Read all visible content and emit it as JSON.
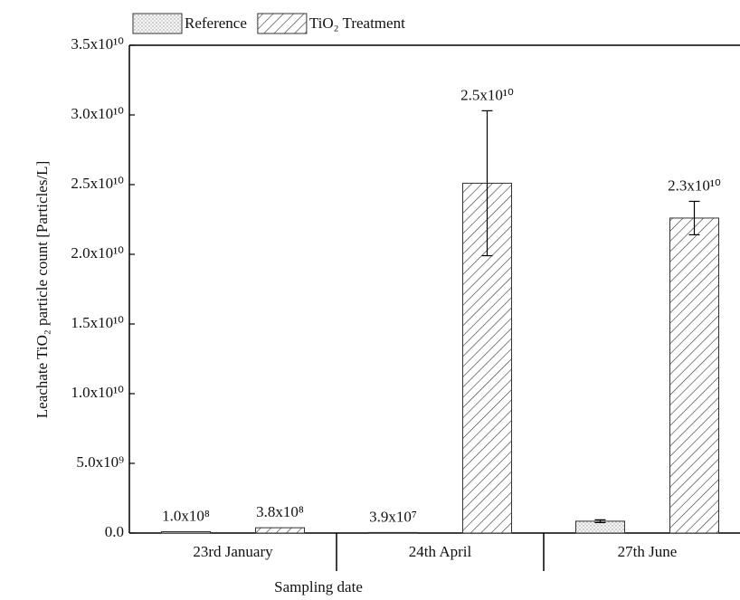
{
  "chart_data": {
    "type": "bar",
    "xlabel": "Sampling date",
    "ylabel": "Leachate TiO₂ particle count [Particles/L]",
    "categories": [
      "23rd January",
      "24th April",
      "27th June"
    ],
    "series": [
      {
        "name": "Reference",
        "color": "#d9d9d9",
        "pattern": "dots",
        "values": [
          100000000,
          39000000,
          850000000
        ],
        "errors": [
          null,
          null,
          100000000
        ],
        "value_labels": [
          "1.0x10⁸",
          "3.9x10⁷",
          null
        ]
      },
      {
        "name": "TiO₂ Treatment",
        "color": "#ffffff",
        "pattern": "hatch",
        "values": [
          380000000,
          25100000000,
          22600000000
        ],
        "errors": [
          null,
          5200000000,
          1200000000
        ],
        "value_labels": [
          "3.8x10⁸",
          "2.5x10¹⁰",
          "2.3x10¹⁰"
        ]
      }
    ],
    "ylim": [
      0,
      35000000000
    ],
    "yticks": [
      {
        "value": 0,
        "label": "0.0"
      },
      {
        "value": 5000000000,
        "label": "5.0x10⁹"
      },
      {
        "value": 10000000000,
        "label": "1.0x10¹⁰"
      },
      {
        "value": 15000000000,
        "label": "1.5x10¹⁰"
      },
      {
        "value": 20000000000,
        "label": "2.0x10¹⁰"
      },
      {
        "value": 25000000000,
        "label": "2.5x10¹⁰"
      },
      {
        "value": 30000000000,
        "label": "3.0x10¹⁰"
      },
      {
        "value": 35000000000,
        "label": "3.5x10¹⁰"
      }
    ],
    "legend": "top"
  }
}
